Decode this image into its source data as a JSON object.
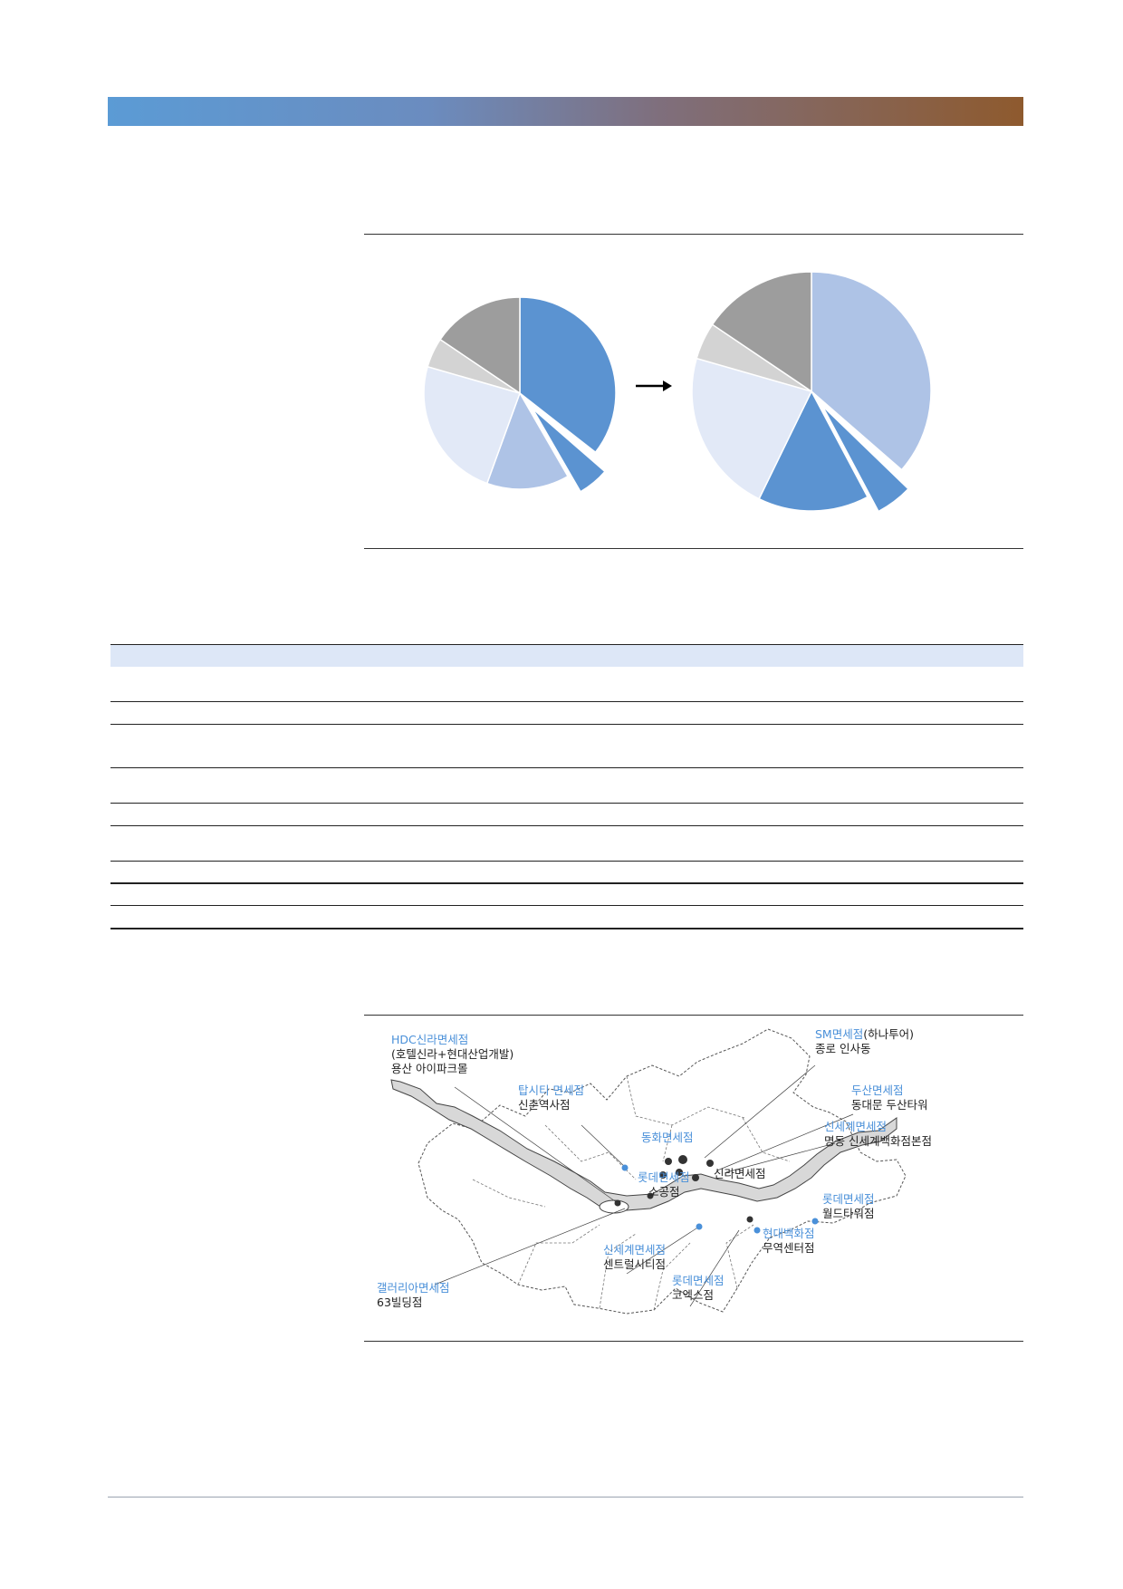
{
  "header": {
    "bar_colors": [
      "#5b9bd5",
      "#8e5a2e"
    ]
  },
  "pie_charts": {
    "arrow": "→",
    "before": {
      "colors": [
        "#5b93d1",
        "#aec3e6",
        "#e2e9f7",
        "#d3d3d3",
        "#9d9d9d"
      ]
    },
    "after": {
      "colors": [
        "#aec3e6",
        "#5b93d1",
        "#e2e9f7",
        "#d3d3d3",
        "#9d9d9d"
      ]
    }
  },
  "map": {
    "labels": [
      {
        "name": "HDC신라면세점",
        "sub": [
          "(호텔신라+현대산업개발)",
          "용산 아이파크몰"
        ]
      },
      {
        "name": "탑시티 면세점",
        "sub": [
          "신촌역사점"
        ]
      },
      {
        "name": "SM면세점",
        "suffix": "(하나투어)",
        "sub": [
          "종로 인사동"
        ]
      },
      {
        "name": "두산면세점",
        "sub": [
          "동대문 두산타워"
        ]
      },
      {
        "name": "신세계면세점",
        "sub": [
          "명동 신세계백화점본점"
        ]
      },
      {
        "name": "동화면세점",
        "sub": []
      },
      {
        "name": "롯데면세점",
        "sub": [
          "소공점"
        ]
      },
      {
        "name": "",
        "sub": [
          "신라면세점"
        ]
      },
      {
        "name": "롯데면세점",
        "sub": [
          "월드타워점"
        ]
      },
      {
        "name": "현대백화점",
        "sub": [
          "무역센터점"
        ]
      },
      {
        "name": "신세계면세점",
        "sub": [
          "센트럴시티점"
        ]
      },
      {
        "name": "롯데면세점",
        "sub": [
          "코엑스점"
        ]
      },
      {
        "name": "갤러리아면세점",
        "sub": [
          "63빌딩점"
        ]
      }
    ]
  }
}
